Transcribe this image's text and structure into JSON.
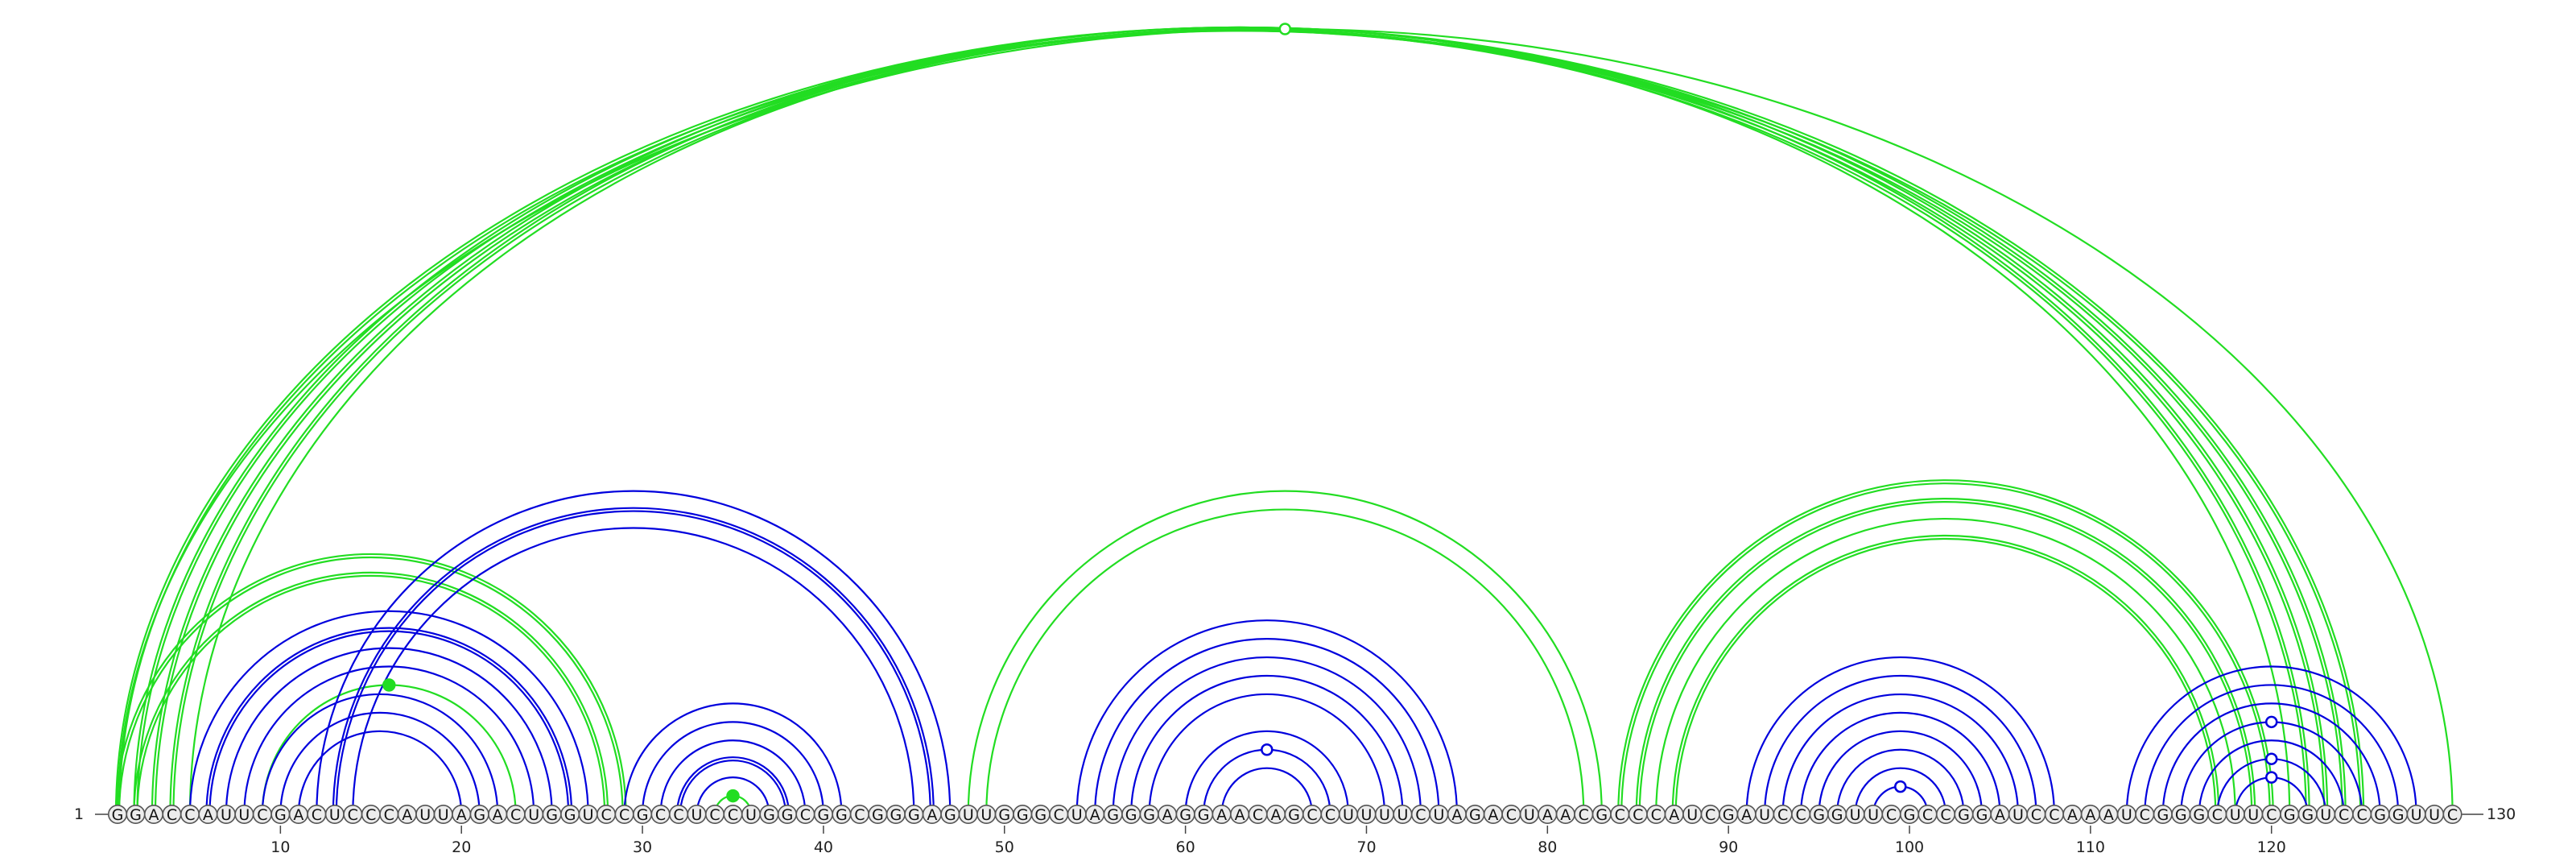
{
  "sequence": "GGACCAUUCGACUCCCAUUAGACUGGUCCGCCUCCUGGCGGCGGGAGUUGGGCUAGGGAGGAACAGCCUUUUCUAGACUAACGCCCAUCGAUCCGGUUCGCCGGAUCCAAAUCGGGCUUCGGUCCGGUUC",
  "start_label": "1",
  "end_label": "130",
  "ticks": [
    10,
    20,
    30,
    40,
    50,
    60,
    70,
    80,
    90,
    100,
    110,
    120
  ],
  "colors": {
    "primary": "#0000dd",
    "alternate": "#22dd22"
  },
  "arcs": [
    {
      "from": 1,
      "to": 130,
      "color": "#22dd22",
      "count": 1
    },
    {
      "from": 1,
      "to": 125,
      "color": "#22dd22",
      "count": 2
    },
    {
      "from": 2,
      "to": 124,
      "color": "#22dd22",
      "count": 2
    },
    {
      "from": 3,
      "to": 123,
      "color": "#22dd22",
      "count": 2
    },
    {
      "from": 4,
      "to": 122,
      "color": "#22dd22",
      "count": 2
    },
    {
      "from": 5,
      "to": 121,
      "color": "#22dd22",
      "count": 1
    },
    {
      "from": 1,
      "to": 29,
      "color": "#22dd22",
      "count": 2
    },
    {
      "from": 2,
      "to": 28,
      "color": "#22dd22",
      "count": 2
    },
    {
      "from": 5,
      "to": 27,
      "color": "#0000dd",
      "count": 1
    },
    {
      "from": 6,
      "to": 26,
      "color": "#0000dd",
      "count": 2
    },
    {
      "from": 7,
      "to": 25,
      "color": "#0000dd",
      "count": 1
    },
    {
      "from": 8,
      "to": 24,
      "color": "#0000dd",
      "count": 1
    },
    {
      "from": 9,
      "to": 23,
      "color": "#22dd22",
      "count": 1
    },
    {
      "from": 9,
      "to": 22,
      "color": "#0000dd",
      "count": 1
    },
    {
      "from": 10,
      "to": 21,
      "color": "#0000dd",
      "count": 1
    },
    {
      "from": 11,
      "to": 20,
      "color": "#0000dd",
      "count": 1
    },
    {
      "from": 12,
      "to": 47,
      "color": "#0000dd",
      "count": 1
    },
    {
      "from": 13,
      "to": 46,
      "color": "#0000dd",
      "count": 2
    },
    {
      "from": 14,
      "to": 45,
      "color": "#0000dd",
      "count": 1
    },
    {
      "from": 29,
      "to": 41,
      "color": "#0000dd",
      "count": 1
    },
    {
      "from": 30,
      "to": 40,
      "color": "#0000dd",
      "count": 1
    },
    {
      "from": 31,
      "to": 39,
      "color": "#0000dd",
      "count": 1
    },
    {
      "from": 32,
      "to": 38,
      "color": "#0000dd",
      "count": 2
    },
    {
      "from": 33,
      "to": 37,
      "color": "#0000dd",
      "count": 1
    },
    {
      "from": 34,
      "to": 36,
      "color": "#22dd22",
      "count": 1
    },
    {
      "from": 48,
      "to": 83,
      "color": "#22dd22",
      "count": 1
    },
    {
      "from": 49,
      "to": 82,
      "color": "#22dd22",
      "count": 1
    },
    {
      "from": 54,
      "to": 75,
      "color": "#0000dd",
      "count": 1
    },
    {
      "from": 55,
      "to": 74,
      "color": "#0000dd",
      "count": 1
    },
    {
      "from": 56,
      "to": 73,
      "color": "#0000dd",
      "count": 1
    },
    {
      "from": 57,
      "to": 72,
      "color": "#0000dd",
      "count": 1
    },
    {
      "from": 58,
      "to": 71,
      "color": "#0000dd",
      "count": 1
    },
    {
      "from": 60,
      "to": 69,
      "color": "#0000dd",
      "count": 1
    },
    {
      "from": 61,
      "to": 68,
      "color": "#0000dd",
      "count": 1
    },
    {
      "from": 62,
      "to": 67,
      "color": "#0000dd",
      "count": 1
    },
    {
      "from": 84,
      "to": 120,
      "color": "#22dd22",
      "count": 2
    },
    {
      "from": 85,
      "to": 119,
      "color": "#22dd22",
      "count": 2
    },
    {
      "from": 86,
      "to": 118,
      "color": "#22dd22",
      "count": 1
    },
    {
      "from": 87,
      "to": 117,
      "color": "#22dd22",
      "count": 2
    },
    {
      "from": 91,
      "to": 108,
      "color": "#0000dd",
      "count": 1
    },
    {
      "from": 92,
      "to": 107,
      "color": "#0000dd",
      "count": 1
    },
    {
      "from": 93,
      "to": 106,
      "color": "#0000dd",
      "count": 1
    },
    {
      "from": 94,
      "to": 105,
      "color": "#0000dd",
      "count": 1
    },
    {
      "from": 95,
      "to": 104,
      "color": "#0000dd",
      "count": 1
    },
    {
      "from": 96,
      "to": 103,
      "color": "#0000dd",
      "count": 1
    },
    {
      "from": 97,
      "to": 102,
      "color": "#0000dd",
      "count": 1
    },
    {
      "from": 98,
      "to": 101,
      "color": "#0000dd",
      "count": 1
    },
    {
      "from": 112,
      "to": 128,
      "color": "#0000dd",
      "count": 1
    },
    {
      "from": 113,
      "to": 127,
      "color": "#0000dd",
      "count": 1
    },
    {
      "from": 114,
      "to": 126,
      "color": "#0000dd",
      "count": 1
    },
    {
      "from": 115,
      "to": 125,
      "color": "#0000dd",
      "count": 1
    },
    {
      "from": 116,
      "to": 124,
      "color": "#0000dd",
      "count": 1
    },
    {
      "from": 117,
      "to": 123,
      "color": "#0000dd",
      "count": 1
    },
    {
      "from": 118,
      "to": 122,
      "color": "#0000dd",
      "count": 1
    }
  ],
  "markers": [
    {
      "arc": 0,
      "filled": false
    },
    {
      "arc": 12,
      "filled": true
    },
    {
      "arc": 24,
      "filled": true
    },
    {
      "arc": 33,
      "filled": false
    },
    {
      "arc": 46,
      "filled": false
    },
    {
      "arc": 50,
      "filled": false
    },
    {
      "arc": 52,
      "filled": false
    },
    {
      "arc": 53,
      "filled": false
    }
  ]
}
